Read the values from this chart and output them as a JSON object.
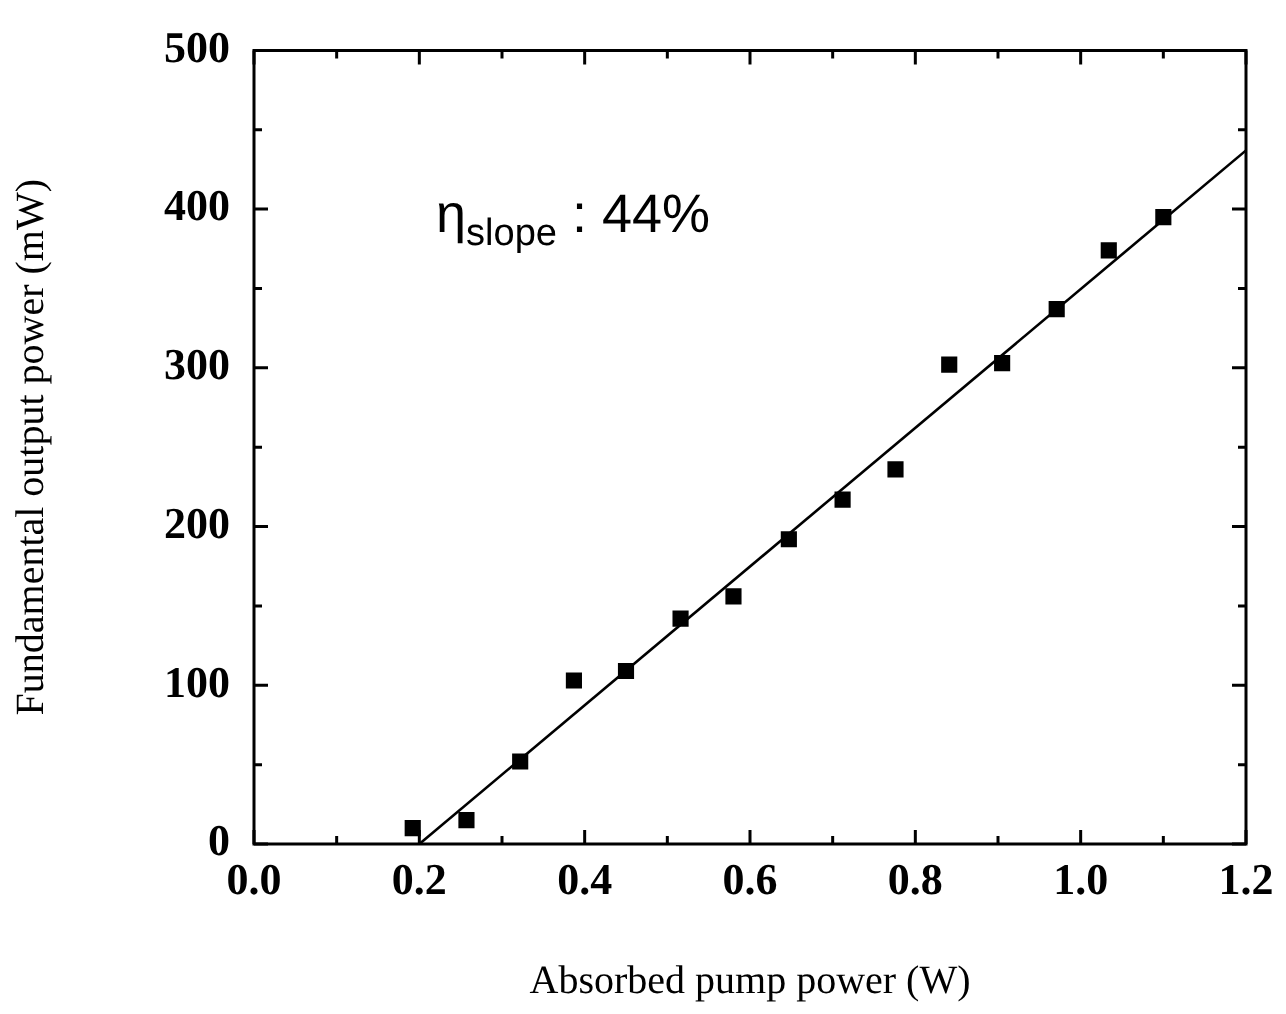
{
  "chart_data": {
    "type": "scatter",
    "xlabel": "Absorbed pump power (W)",
    "ylabel": "Fundamental output power (mW)",
    "xlim": [
      0,
      1.2
    ],
    "ylim": [
      0,
      500
    ],
    "xticks": [
      {
        "value": 0,
        "label": "0.0"
      },
      {
        "value": 0.1,
        "label": null
      },
      0.2,
      {
        "value": 0.3,
        "label": null
      },
      0.4,
      {
        "value": 0.5,
        "label": null
      },
      0.6,
      {
        "value": 0.7,
        "label": null
      },
      0.8,
      {
        "value": 0.9,
        "label": null
      },
      {
        "value": 1,
        "label": "1.0"
      },
      {
        "value": 1.1,
        "label": null
      },
      1.2
    ],
    "yticks": [
      0,
      {
        "value": 50,
        "label": null
      },
      100,
      {
        "value": 150,
        "label": null
      },
      200,
      {
        "value": 250,
        "label": null
      },
      300,
      {
        "value": 350,
        "label": null
      },
      400,
      {
        "value": 450,
        "label": null
      },
      500
    ],
    "grid": false,
    "legend": false,
    "marker": "square",
    "annotations": [
      "η$_{slope}$ : 44%"
    ],
    "series": [
      {
        "color": "#000000",
        "x": [
          0.192,
          0.257,
          0.322,
          0.387,
          0.45,
          0.516,
          0.58,
          0.647,
          0.712,
          0.776,
          0.841,
          0.905,
          0.971,
          1.034,
          1.1
        ],
        "values": [
          10,
          15,
          52,
          103,
          109,
          142,
          156,
          192,
          217,
          236,
          302,
          303,
          337,
          374,
          395
        ]
      },
      {
        "type": "line",
        "color": "#000000",
        "marker": "none",
        "line_style": "solid",
        "x": [
          0.2,
          1.2
        ],
        "values": [
          0,
          437
        ]
      }
    ]
  }
}
